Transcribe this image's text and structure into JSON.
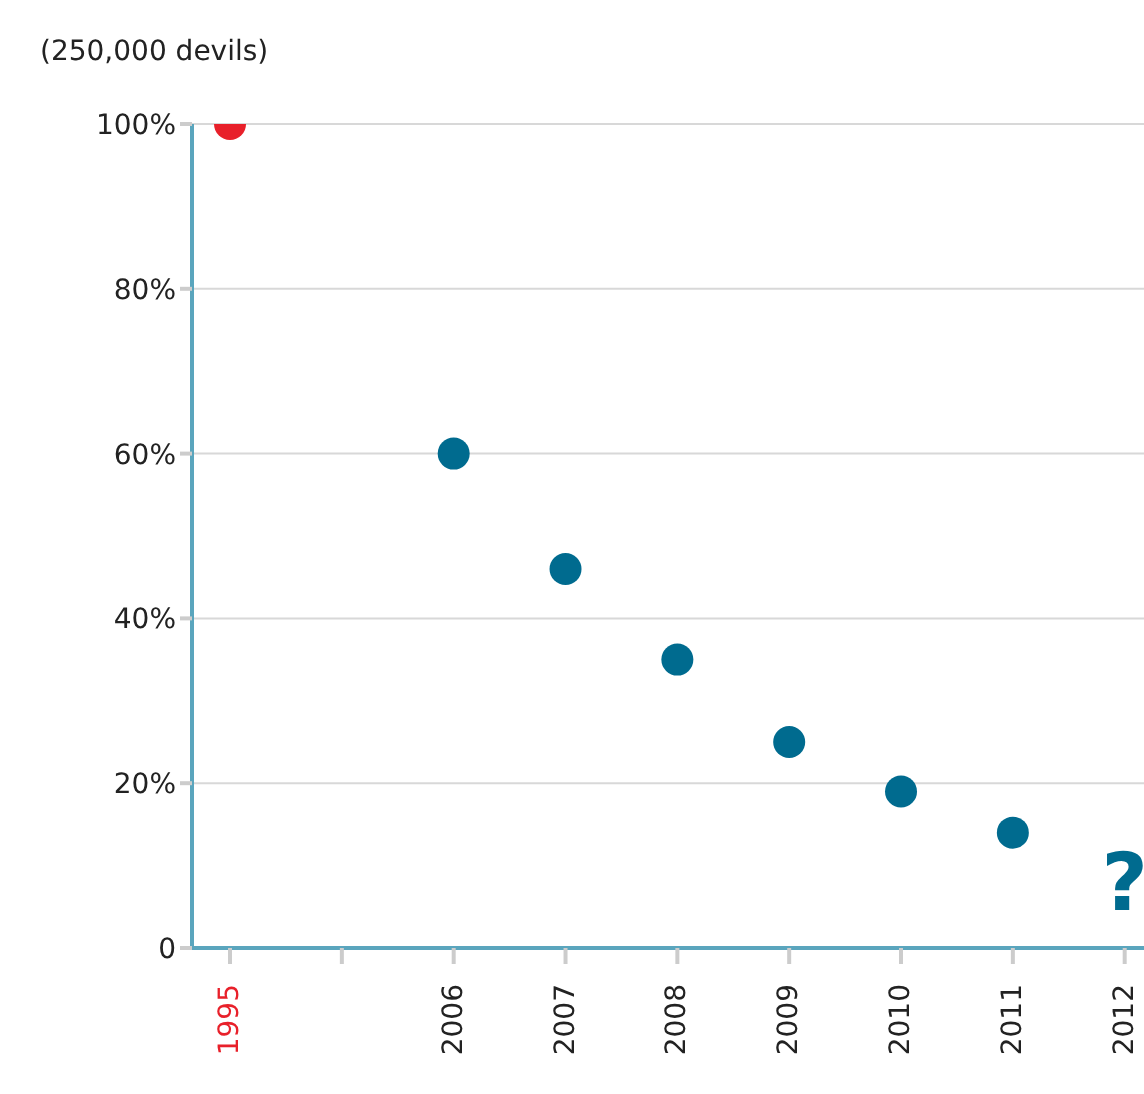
{
  "chart_data": {
    "type": "scatter",
    "ylabel": "(250,000 devils)",
    "categories": [
      "1995",
      null,
      "2006",
      "2007",
      "2008",
      "2009",
      "2010",
      "2011",
      "2012"
    ],
    "values": [
      100,
      null,
      60,
      46,
      35,
      25,
      19,
      14,
      null
    ],
    "colors": [
      "#e8202a",
      null,
      "#006b8f",
      "#006b8f",
      "#006b8f",
      "#006b8f",
      "#006b8f",
      "#006b8f",
      null
    ],
    "ylim": [
      0,
      100
    ],
    "yticks": [
      0,
      {
        "value": 20,
        "label": "20%"
      },
      {
        "value": 40,
        "label": "40%"
      },
      {
        "value": 60,
        "label": "60%"
      },
      {
        "value": 80,
        "label": "80%"
      },
      {
        "value": 100,
        "label": "100%"
      }
    ],
    "grid": "y",
    "marker": "circle",
    "annotations": [
      "?"
    ]
  }
}
